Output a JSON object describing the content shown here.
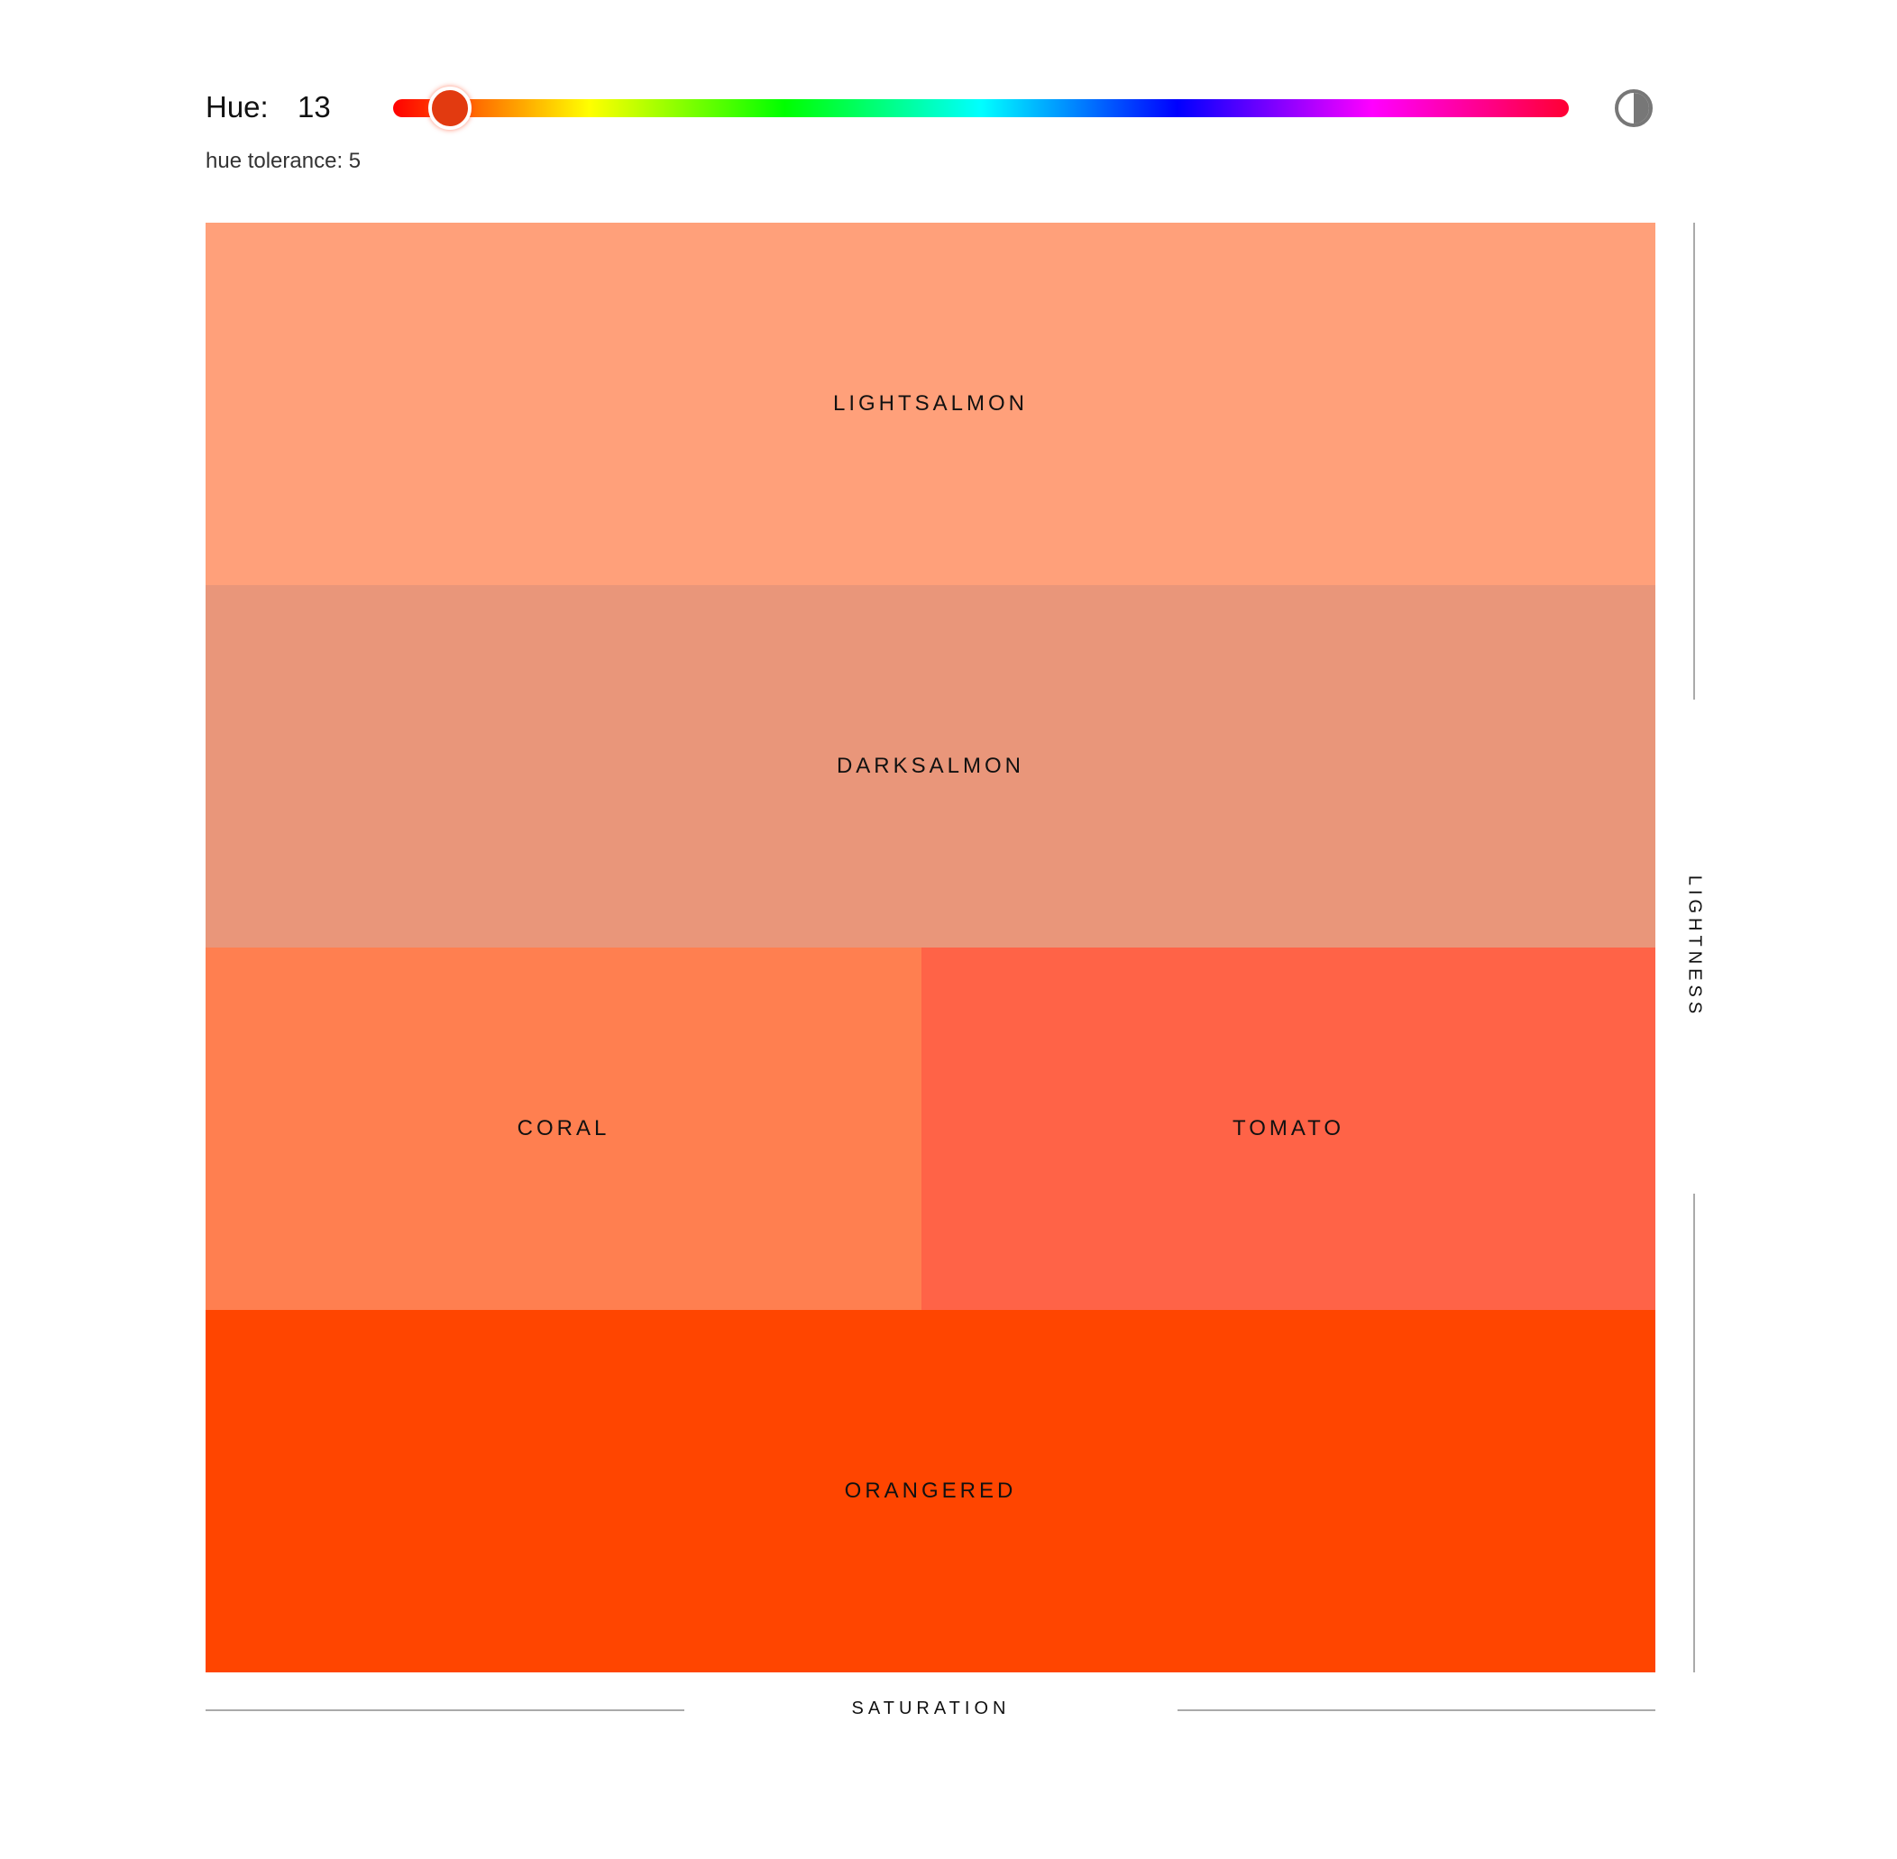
{
  "controls": {
    "hue_label": "Hue:",
    "hue_value": "13",
    "hue_slider": {
      "min": 0,
      "max": 360,
      "value": 13
    },
    "tolerance_text": "hue tolerance: 5",
    "contrast_icon": "contrast-icon"
  },
  "swatches": [
    {
      "name": "LIGHTSALMON",
      "color": "#FFA07A"
    },
    {
      "name": "DARKSALMON",
      "color": "#E9967A"
    },
    {
      "name": "CORAL",
      "color": "#FF7F50"
    },
    {
      "name": "TOMATO",
      "color": "#FF6347"
    },
    {
      "name": "ORANGERED",
      "color": "#FF4500"
    }
  ],
  "axes": {
    "x_label": "SATURATION",
    "y_label": "LIGHTNESS"
  }
}
